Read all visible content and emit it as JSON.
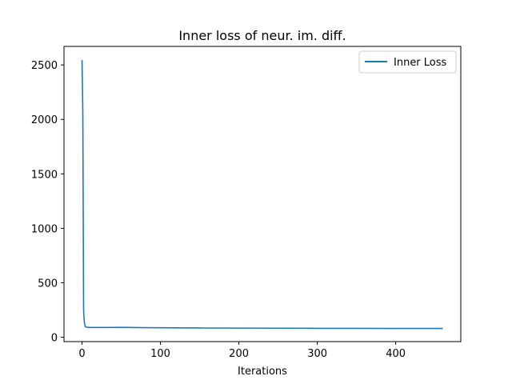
{
  "chart_data": {
    "type": "line",
    "title": "Inner loss of neur. im. diff.",
    "xlabel": "Iterations",
    "ylabel": "",
    "xlim": [
      -23,
      483
    ],
    "ylim": [
      -40,
      2670
    ],
    "xticks": [
      0,
      100,
      200,
      300,
      400
    ],
    "yticks": [
      0,
      500,
      1000,
      1500,
      2000,
      2500
    ],
    "grid": false,
    "legend_position": "top-right",
    "series": [
      {
        "name": "Inner Loss",
        "color": "#1f77b4",
        "x": [
          0,
          1,
          2,
          3,
          4,
          5,
          6,
          8,
          10,
          15,
          20,
          30,
          40,
          50,
          60,
          70,
          80,
          100,
          120,
          150,
          200,
          250,
          300,
          350,
          400,
          450,
          460
        ],
        "y": [
          2545,
          2060,
          240,
          135,
          100,
          95,
          92,
          91,
          90,
          90,
          90,
          90,
          90,
          91,
          90,
          89,
          88,
          87,
          86,
          85,
          84,
          83,
          82,
          82,
          81,
          81,
          81
        ]
      }
    ]
  }
}
